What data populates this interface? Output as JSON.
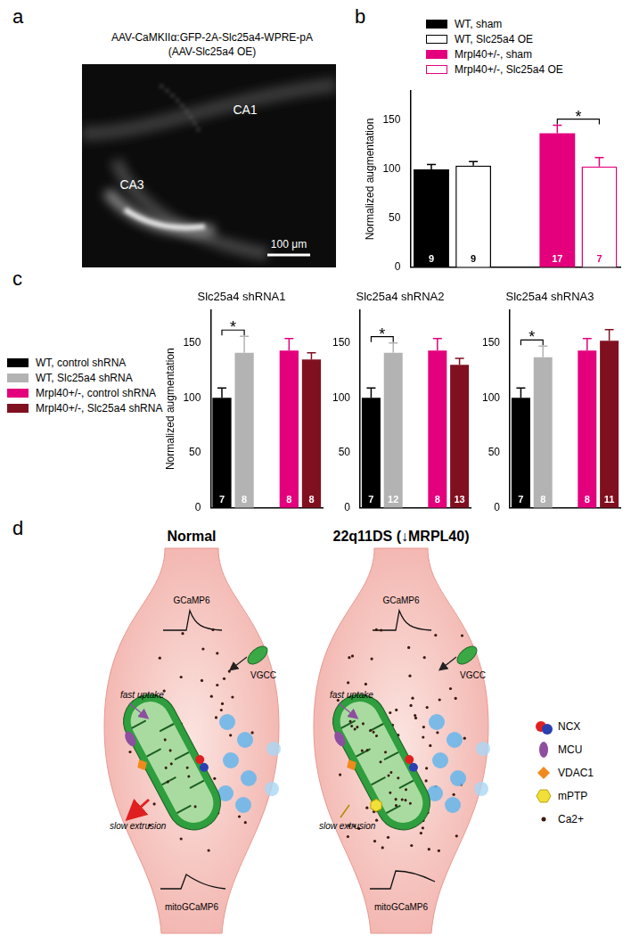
{
  "panel_labels": [
    "a",
    "b",
    "c",
    "d"
  ],
  "panel_a": {
    "title": "AAV-CaMKIIα:GFP-2A-Slc25a4-WPRE-pA",
    "subtitle": "(AAV-Slc25a4 OE)",
    "regions": [
      "CA1",
      "CA3"
    ],
    "scale_bar": "100 μm"
  },
  "chart_data": [
    {
      "type": "bar",
      "y_label": "Normalized augmentation",
      "categories": [
        null,
        null,
        null,
        null,
        null
      ],
      "series": [
        {
          "name": "WT, sham",
          "color": "#000000",
          "marker": "filled",
          "values": [
            100,
            null,
            null,
            null,
            null
          ],
          "errors": [
            5,
            null,
            null,
            null,
            null
          ],
          "n": [
            9,
            null,
            null,
            null,
            null
          ]
        },
        {
          "name": "WT, Slc25a4 OE",
          "color": "#000000",
          "marker": "hollow",
          "values": [
            null,
            104,
            null,
            null,
            null
          ],
          "errors": [
            null,
            4,
            null,
            null,
            null
          ],
          "n": [
            null,
            9,
            null,
            null,
            null
          ]
        },
        {
          "name": "Mrpl40+/-, sham",
          "color": "#e4007c",
          "marker": "filled",
          "values": [
            null,
            null,
            null,
            137,
            null
          ],
          "errors": [
            null,
            null,
            null,
            8,
            null
          ],
          "n": [
            null,
            null,
            null,
            17,
            null
          ]
        },
        {
          "name": "Mrpl40+/-, Slc25a4 OE",
          "color": "#e4007c",
          "marker": "hollow",
          "values": [
            null,
            null,
            null,
            null,
            103
          ],
          "errors": [
            null,
            null,
            null,
            null,
            9
          ],
          "n": [
            null,
            null,
            null,
            null,
            7
          ]
        }
      ],
      "significance": [
        {
          "from": 3,
          "to": 4,
          "label": "*"
        }
      ],
      "ylim": [
        0,
        180
      ],
      "yticks": [
        0,
        50,
        100,
        150
      ],
      "grid": false,
      "tick_labels": "y",
      "legend": "top right"
    },
    {
      "type": "bar",
      "title": "Slc25a4 shRNA1",
      "y_label": "Normalized augmentation",
      "categories": [
        null,
        null,
        null,
        null,
        null
      ],
      "series": [
        {
          "name": "WT, control shRNA",
          "color": "#000000",
          "marker": "filled",
          "values": [
            100,
            null,
            null,
            null,
            null
          ],
          "errors": [
            9,
            null,
            null,
            null,
            null
          ],
          "n": [
            7,
            null,
            null,
            null,
            null
          ]
        },
        {
          "name": "WT, Slc25a4 shRNA",
          "color": "#b3b3b3",
          "marker": "filled",
          "values": [
            null,
            141,
            null,
            null,
            null
          ],
          "errors": [
            null,
            15,
            null,
            null,
            null
          ],
          "n": [
            null,
            8,
            null,
            null,
            null
          ]
        },
        {
          "name": "Mrpl40+/-, control shRNA",
          "color": "#e4007c",
          "marker": "filled",
          "values": [
            null,
            null,
            null,
            143,
            null
          ],
          "errors": [
            null,
            null,
            null,
            11,
            null
          ],
          "n": [
            null,
            null,
            null,
            8,
            null
          ]
        },
        {
          "name": "Mrpl40+/-, Slc25a4 shRNA",
          "color": "#801020",
          "marker": "filled",
          "values": [
            null,
            null,
            null,
            null,
            135
          ],
          "errors": [
            null,
            null,
            null,
            null,
            6
          ],
          "n": [
            null,
            null,
            null,
            null,
            8
          ]
        }
      ],
      "significance": [
        {
          "from": 0,
          "to": 1,
          "label": "*"
        }
      ],
      "ylim": [
        0,
        180
      ],
      "yticks": [
        0,
        50,
        100,
        150
      ],
      "grid": false,
      "tick_labels": "y",
      "legend": "left"
    },
    {
      "type": "bar",
      "title": "Slc25a4 shRNA2",
      "categories": [
        null,
        null,
        null,
        null,
        null
      ],
      "series": [
        {
          "name": "WT, control shRNA",
          "color": "#000000",
          "marker": "filled",
          "values": [
            100,
            null,
            null,
            null,
            null
          ],
          "errors": [
            9,
            null,
            null,
            null,
            null
          ],
          "n": [
            7,
            null,
            null,
            null,
            null
          ]
        },
        {
          "name": "WT, Slc25a4 shRNA",
          "color": "#b3b3b3",
          "marker": "filled",
          "values": [
            null,
            141,
            null,
            null,
            null
          ],
          "errors": [
            null,
            9,
            null,
            null,
            null
          ],
          "n": [
            null,
            12,
            null,
            null,
            null
          ]
        },
        {
          "name": "Mrpl40+/-, control shRNA",
          "color": "#e4007c",
          "marker": "filled",
          "values": [
            null,
            null,
            null,
            143,
            null
          ],
          "errors": [
            null,
            null,
            null,
            11,
            null
          ],
          "n": [
            null,
            null,
            null,
            8,
            null
          ]
        },
        {
          "name": "Mrpl40+/-, Slc25a4 shRNA",
          "color": "#801020",
          "marker": "filled",
          "values": [
            null,
            null,
            null,
            null,
            130
          ],
          "errors": [
            null,
            null,
            null,
            null,
            6
          ],
          "n": [
            null,
            null,
            null,
            null,
            13
          ]
        }
      ],
      "significance": [
        {
          "from": 0,
          "to": 1,
          "label": "*"
        }
      ],
      "ylim": [
        0,
        180
      ],
      "yticks": [
        0,
        50,
        100,
        150
      ],
      "grid": false,
      "tick_labels": "y"
    },
    {
      "type": "bar",
      "title": "Slc25a4 shRNA3",
      "categories": [
        null,
        null,
        null,
        null,
        null
      ],
      "series": [
        {
          "name": "WT, control shRNA",
          "color": "#000000",
          "marker": "filled",
          "values": [
            100,
            null,
            null,
            null,
            null
          ],
          "errors": [
            9,
            null,
            null,
            null,
            null
          ],
          "n": [
            7,
            null,
            null,
            null,
            null
          ]
        },
        {
          "name": "WT, Slc25a4 shRNA",
          "color": "#b3b3b3",
          "marker": "filled",
          "values": [
            null,
            137,
            null,
            null,
            null
          ],
          "errors": [
            null,
            10,
            null,
            null,
            null
          ],
          "n": [
            null,
            8,
            null,
            null,
            null
          ]
        },
        {
          "name": "Mrpl40+/-, control shRNA",
          "color": "#e4007c",
          "marker": "filled",
          "values": [
            null,
            null,
            null,
            143,
            null
          ],
          "errors": [
            null,
            null,
            null,
            11,
            null
          ],
          "n": [
            null,
            null,
            null,
            8,
            null
          ]
        },
        {
          "name": "Mrpl40+/-, Slc25a4 shRNA",
          "color": "#801020",
          "marker": "filled",
          "values": [
            null,
            null,
            null,
            null,
            152
          ],
          "errors": [
            null,
            null,
            null,
            null,
            10
          ],
          "n": [
            null,
            null,
            null,
            null,
            11
          ]
        }
      ],
      "significance": [
        {
          "from": 0,
          "to": 1,
          "label": "*"
        }
      ],
      "ylim": [
        0,
        180
      ],
      "yticks": [
        0,
        50,
        100,
        150
      ],
      "grid": false,
      "tick_labels": "y"
    }
  ],
  "panel_d": {
    "conditions": [
      "Normal",
      "22q11DS (↓MRPL40)"
    ],
    "labels": {
      "cytosolic": "GCaMP6",
      "channel": "VGCC",
      "uptake": "fast uptake",
      "extrusion": "slow extrusion",
      "mito": "mitoGCaMP6"
    },
    "legend": [
      {
        "label": "NCX",
        "color": "#e02020"
      },
      {
        "label": "MCU",
        "color": "#8e4fa0"
      },
      {
        "label": "VDAC1",
        "color": "#f08a1c"
      },
      {
        "label": "mPTP",
        "color": "#f2e03a"
      },
      {
        "label": "Ca2+",
        "color": "#3a1a10"
      }
    ]
  }
}
